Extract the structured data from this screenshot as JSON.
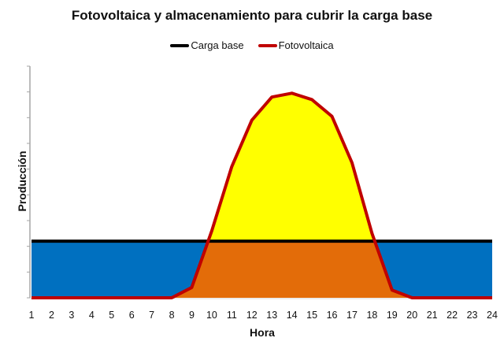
{
  "chart_data": {
    "type": "area",
    "title": "Fotovoltaica y almacenamiento para cubrir la carga base",
    "xlabel": "Hora",
    "ylabel": "Producción",
    "categories": [
      1,
      2,
      3,
      4,
      5,
      6,
      7,
      8,
      9,
      10,
      11,
      12,
      13,
      14,
      15,
      16,
      17,
      18,
      19,
      20,
      21,
      22,
      23,
      24
    ],
    "ylim": [
      0,
      9
    ],
    "y_ticks_labeled": false,
    "grid": false,
    "legend_position": "top",
    "series": [
      {
        "name": "Carga base",
        "color": "#000000",
        "values": [
          2.2,
          2.2,
          2.2,
          2.2,
          2.2,
          2.2,
          2.2,
          2.2,
          2.2,
          2.2,
          2.2,
          2.2,
          2.2,
          2.2,
          2.2,
          2.2,
          2.2,
          2.2,
          2.2,
          2.2,
          2.2,
          2.2,
          2.2,
          2.2
        ]
      },
      {
        "name": "Fotovoltaica",
        "color": "#c00000",
        "values": [
          0,
          0,
          0,
          0,
          0,
          0,
          0,
          0,
          0.4,
          2.6,
          5.1,
          6.9,
          7.8,
          7.95,
          7.7,
          7.05,
          5.25,
          2.5,
          0.3,
          0,
          0,
          0,
          0,
          0
        ]
      }
    ],
    "fills": {
      "storage_discharge": "#0070c0",
      "pv_direct_to_load": "#e36c09",
      "pv_surplus": "#ffff00"
    }
  },
  "legend": [
    {
      "label": "Carga base",
      "color": "#000000"
    },
    {
      "label": "Fotovoltaica",
      "color": "#c00000"
    }
  ]
}
